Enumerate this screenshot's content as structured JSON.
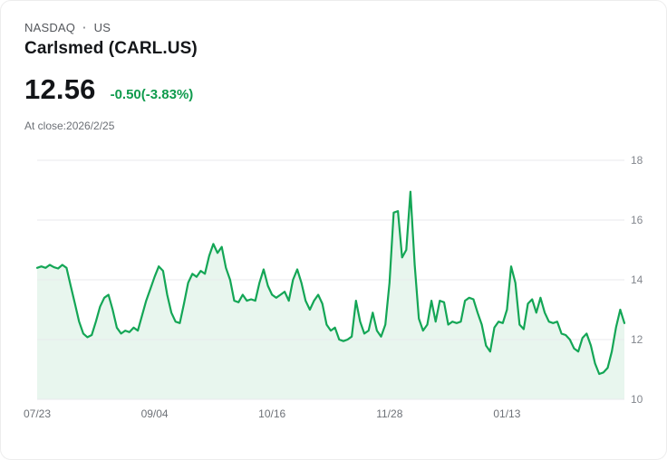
{
  "header": {
    "exchange": "NASDAQ",
    "separator": "·",
    "market": "US",
    "title": "Carlsmed (CARL.US)"
  },
  "quote": {
    "price": "12.56",
    "change": "-0.50(-3.83%)",
    "change_color": "#0f9b4d",
    "close_note": "At close:2026/2/25"
  },
  "chart_data": {
    "type": "area",
    "title": "Carlsmed (CARL.US) price history",
    "ylim": [
      10,
      18
    ],
    "yticks": [
      10,
      12,
      14,
      16,
      18
    ],
    "xticks": [
      {
        "label": "07/23",
        "i": 0
      },
      {
        "label": "09/04",
        "i": 28
      },
      {
        "label": "10/16",
        "i": 56
      },
      {
        "label": "11/28",
        "i": 84
      },
      {
        "label": "01/13",
        "i": 112
      }
    ],
    "values": [
      14.4,
      14.45,
      14.4,
      14.5,
      14.42,
      14.38,
      14.5,
      14.4,
      13.8,
      13.2,
      12.6,
      12.2,
      12.08,
      12.15,
      12.6,
      13.1,
      13.4,
      13.5,
      13.0,
      12.4,
      12.2,
      12.3,
      12.25,
      12.4,
      12.3,
      12.8,
      13.3,
      13.7,
      14.1,
      14.45,
      14.3,
      13.5,
      12.9,
      12.6,
      12.55,
      13.2,
      13.9,
      14.2,
      14.1,
      14.3,
      14.2,
      14.8,
      15.2,
      14.9,
      15.1,
      14.4,
      14.0,
      13.3,
      13.25,
      13.5,
      13.3,
      13.35,
      13.3,
      13.9,
      14.35,
      13.8,
      13.5,
      13.4,
      13.5,
      13.6,
      13.3,
      14.0,
      14.35,
      13.9,
      13.3,
      13.0,
      13.3,
      13.5,
      13.2,
      12.5,
      12.3,
      12.4,
      12.0,
      11.95,
      12.0,
      12.1,
      13.3,
      12.6,
      12.2,
      12.3,
      12.9,
      12.3,
      12.1,
      12.5,
      13.9,
      16.25,
      16.3,
      14.75,
      15.0,
      16.95,
      14.5,
      12.7,
      12.3,
      12.5,
      13.3,
      12.6,
      13.3,
      13.25,
      12.5,
      12.6,
      12.55,
      12.6,
      13.3,
      13.4,
      13.35,
      12.9,
      12.5,
      11.8,
      11.6,
      12.4,
      12.6,
      12.55,
      13.0,
      14.45,
      13.9,
      12.5,
      12.35,
      13.2,
      13.35,
      12.9,
      13.4,
      12.9,
      12.6,
      12.55,
      12.6,
      12.2,
      12.15,
      12.0,
      11.7,
      11.6,
      12.05,
      12.2,
      11.8,
      11.2,
      10.85,
      10.9,
      11.05,
      11.6,
      12.4,
      13.0,
      12.55
    ],
    "grid": true,
    "legend": "none",
    "line_color": "#14a656",
    "fill_color": "#e8f6ee",
    "grid_color": "#e8eaec"
  }
}
